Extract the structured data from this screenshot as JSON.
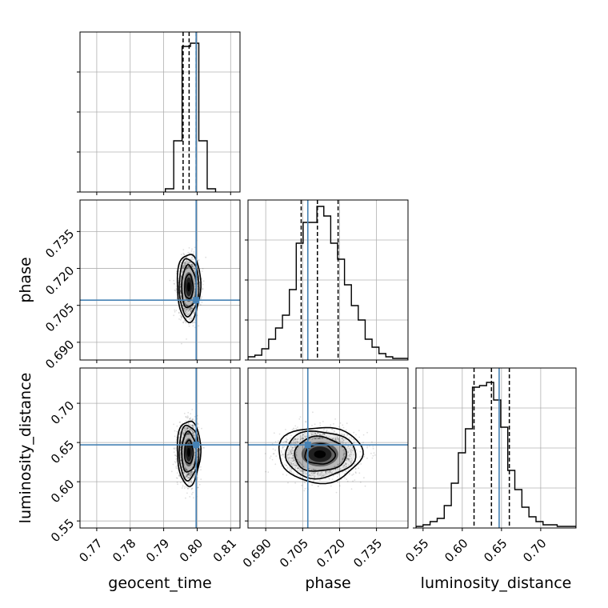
{
  "chart_data": {
    "type": "corner",
    "parameters": [
      {
        "id": "geocent_time",
        "label": "geocent_time",
        "range": [
          0.765,
          0.8128
        ],
        "ticks": [
          0.77,
          0.78,
          0.79,
          0.8,
          0.81
        ],
        "tick_labels": [
          "0.77",
          "0.78",
          "0.79",
          "0.80",
          "0.81"
        ],
        "truth": 0.7997,
        "quantiles": [
          0.7958,
          0.7976,
          0.7997
        ],
        "hist": {
          "edges": [
            0.7905,
            0.793,
            0.7955,
            0.798,
            0.8005,
            0.803,
            0.8055
          ],
          "counts": [
            0.02,
            0.32,
            0.91,
            0.93,
            0.32,
            0.02
          ]
        }
      },
      {
        "id": "phase",
        "label": "phase",
        "range": [
          0.6828,
          0.7478
        ],
        "ticks": [
          0.69,
          0.705,
          0.72,
          0.735
        ],
        "tick_labels": [
          "0.690",
          "0.705",
          "0.720",
          "0.735"
        ],
        "truth": 0.7071,
        "quantiles": [
          0.7044,
          0.711,
          0.7194
        ],
        "hist": {
          "edges": [
            0.6828,
            0.6856,
            0.6884,
            0.6912,
            0.694,
            0.6968,
            0.6996,
            0.7024,
            0.7052,
            0.708,
            0.7108,
            0.7136,
            0.7164,
            0.7192,
            0.722,
            0.7248,
            0.7276,
            0.7304,
            0.7332,
            0.736,
            0.7388,
            0.7416,
            0.7444,
            0.7478
          ],
          "counts": [
            0.02,
            0.03,
            0.07,
            0.13,
            0.2,
            0.28,
            0.44,
            0.73,
            0.86,
            0.86,
            0.96,
            0.9,
            0.73,
            0.63,
            0.47,
            0.34,
            0.25,
            0.13,
            0.08,
            0.04,
            0.02,
            0.01,
            0.01
          ]
        }
      },
      {
        "id": "luminosity_distance",
        "label": "luminosity_distance",
        "range": [
          0.541,
          0.745
        ],
        "ticks": [
          0.55,
          0.6,
          0.65,
          0.7
        ],
        "tick_labels": [
          "0.55",
          "0.60",
          "0.65",
          "0.70"
        ],
        "truth": 0.647,
        "quantiles": [
          0.615,
          0.6372,
          0.66
        ],
        "hist": {
          "edges": [
            0.541,
            0.55,
            0.559,
            0.568,
            0.577,
            0.586,
            0.595,
            0.604,
            0.613,
            0.622,
            0.631,
            0.64,
            0.649,
            0.658,
            0.667,
            0.676,
            0.685,
            0.694,
            0.703,
            0.712,
            0.721,
            0.73,
            0.745
          ],
          "counts": [
            0.01,
            0.02,
            0.04,
            0.06,
            0.14,
            0.28,
            0.47,
            0.62,
            0.88,
            0.89,
            0.91,
            0.8,
            0.63,
            0.36,
            0.24,
            0.13,
            0.07,
            0.04,
            0.02,
            0.02,
            0.01,
            0.01
          ]
        }
      }
    ],
    "pairs": [
      {
        "x": "geocent_time",
        "y": "phase",
        "center": [
          0.7975,
          0.7125
        ],
        "spread": [
          0.0014,
          0.0055
        ],
        "contour_radii": [
          0.9,
          1.55,
          2.1,
          2.5
        ]
      },
      {
        "x": "geocent_time",
        "y": "luminosity_distance",
        "center": [
          0.7975,
          0.6375
        ],
        "spread": [
          0.0014,
          0.0165
        ],
        "contour_radii": [
          0.9,
          1.55,
          2.1,
          2.5
        ]
      },
      {
        "x": "phase",
        "y": "luminosity_distance",
        "center": [
          0.712,
          0.635
        ],
        "spread": [
          0.0068,
          0.0142
        ],
        "contour_radii": [
          0.9,
          1.55,
          2.1,
          2.5
        ]
      }
    ],
    "grid": true,
    "colors": {
      "truth": "#4682b4",
      "hist": "#000000",
      "grid": "#b0b0b0",
      "density": "#000000"
    }
  }
}
